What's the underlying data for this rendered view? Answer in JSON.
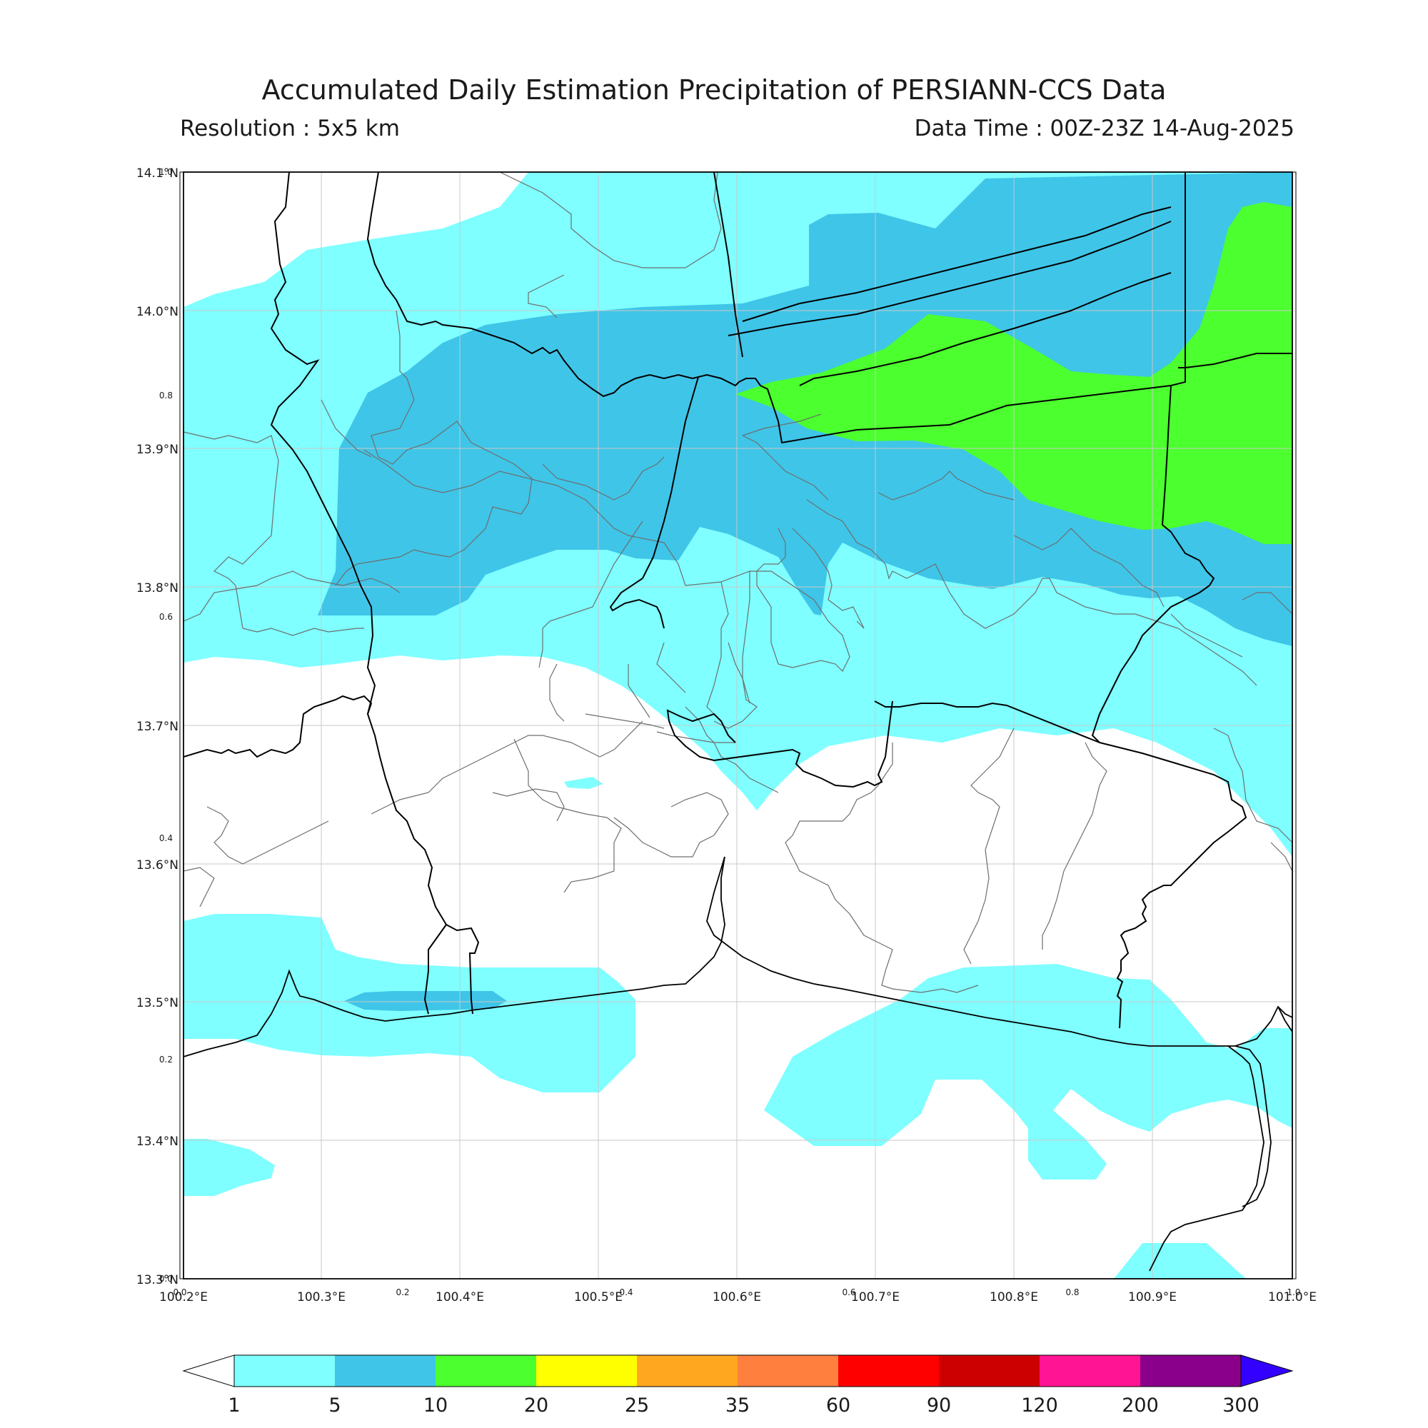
{
  "header": {
    "title": "Accumulated Daily Estimation Precipitation of PERSIANN-CCS Data",
    "resolution": "Resolution : 5x5 km",
    "data_time": "Data Time : 00Z-23Z 14-Aug-2025"
  },
  "map": {
    "lat_labels": [
      "14.1°N",
      "14.0°N",
      "13.9°N",
      "13.8°N",
      "13.7°N",
      "13.6°N",
      "13.5°N",
      "13.4°N",
      "13.3°N"
    ],
    "lon_labels": [
      "100.2°E",
      "100.3°E",
      "100.4°E",
      "100.5°E",
      "100.6°E",
      "100.7°E",
      "100.8°E",
      "100.9°E",
      "101.0°E"
    ],
    "inner_y_ticks": [
      "1.0",
      "0.8",
      "0.6",
      "0.4",
      "0.2",
      "0.0"
    ],
    "inner_x_ticks": [
      "0.0",
      "0.2",
      "0.4",
      "0.6",
      "0.8",
      "1.0"
    ],
    "rain_colors": {
      "c1_5": "#7fffff",
      "c5_10": "#3fc5e8",
      "c10_20": "#4cff2e"
    }
  },
  "legend": {
    "labels": [
      "1",
      "5",
      "10",
      "20",
      "25",
      "35",
      "60",
      "90",
      "120",
      "200",
      "300"
    ],
    "colors": [
      "#7fffff",
      "#3fc5e8",
      "#4cff2e",
      "#ffff00",
      "#ffa81f",
      "#ff7f3f",
      "#ff0000",
      "#cc0000",
      "#ff1493",
      "#8b008b",
      "#3300ff"
    ]
  }
}
